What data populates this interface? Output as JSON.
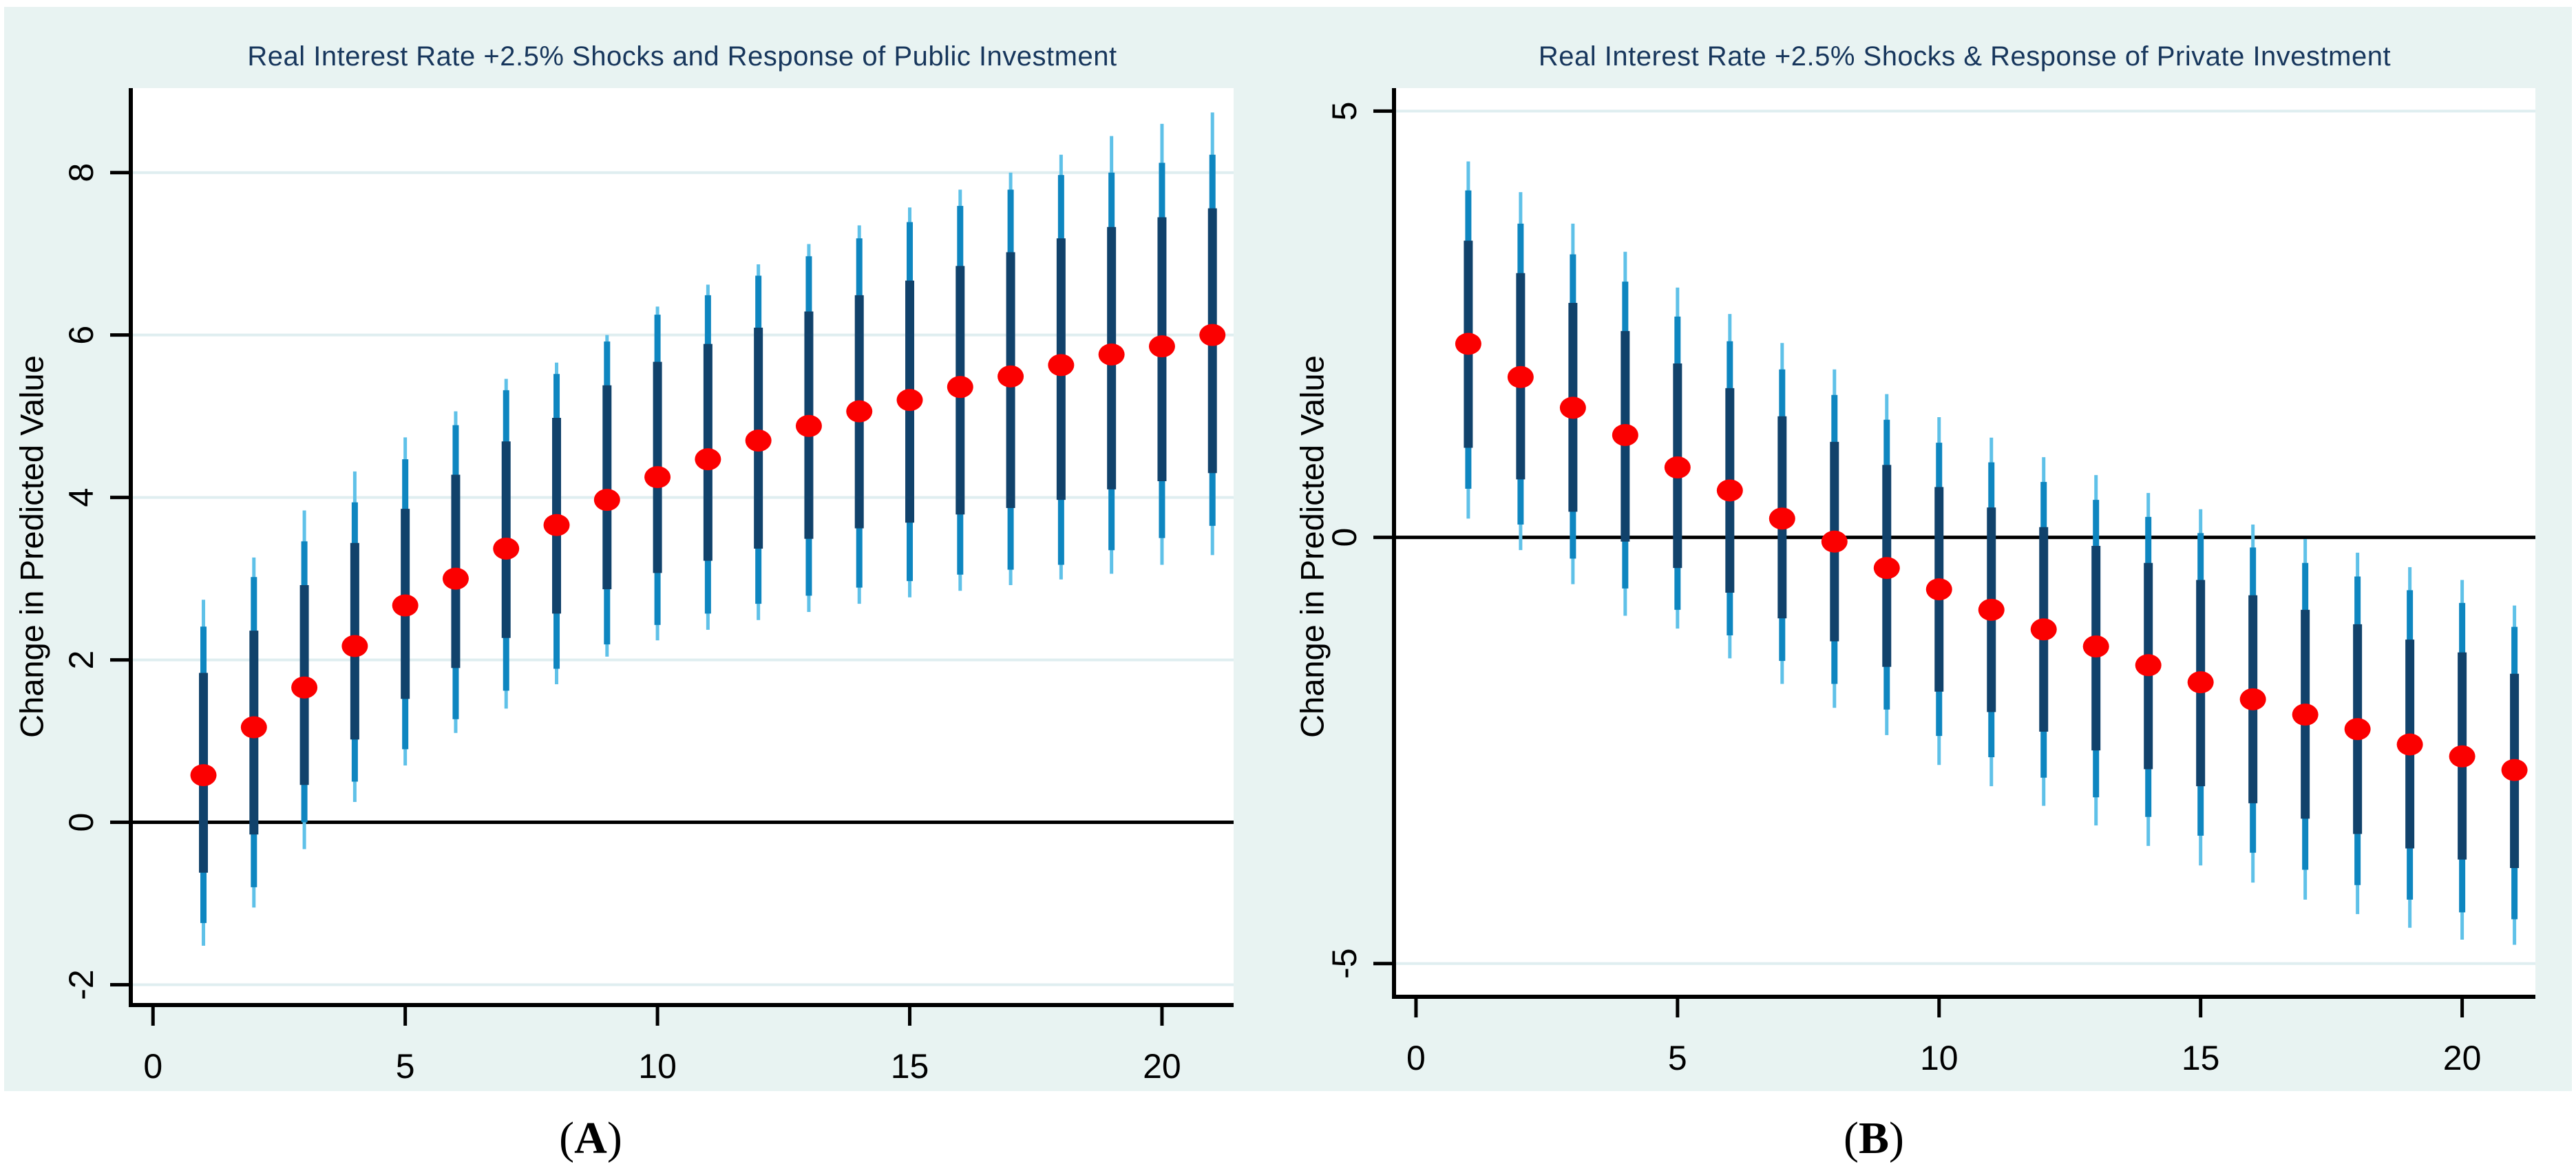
{
  "figure": {
    "y_axis_title": "Change in Predicted Value",
    "caption_open": "(",
    "caption_close": ")"
  },
  "colors": {
    "background_tint": "#e8f3f2",
    "plot_background": "#ffffff",
    "gridline": "#dfeef0",
    "axis": "#000000",
    "zero_line": "#000000",
    "title_text": "#17365c",
    "ci_outer_light_blue": "#5fc1e8",
    "ci_mid_blue": "#0e86c0",
    "ci_inner_navy": "#11426b",
    "point_red": "#fb0000",
    "caption_text": "#000000"
  },
  "chart_data": [
    {
      "type": "scatter",
      "title": "Real Interest Rate +2.5% Shocks and Response of Public Investment",
      "caption": "A",
      "ylabel": "Change in Predicted Value",
      "xlabel": "",
      "grid": true,
      "zero_line": true,
      "legend": "none",
      "x_ticks": [
        0,
        5,
        10,
        15,
        20
      ],
      "y_ticks": [
        8,
        6,
        4,
        2,
        0,
        -2
      ],
      "xlim": [
        -0.44,
        21.42
      ],
      "ylim": [
        -2.25,
        9.04
      ],
      "x": [
        1,
        2,
        3,
        4,
        5,
        6,
        7,
        8,
        9,
        10,
        11,
        12,
        13,
        14,
        15,
        16,
        17,
        18,
        19,
        20,
        21
      ],
      "point_estimate": [
        0.58,
        1.17,
        1.66,
        2.17,
        2.67,
        3.0,
        3.37,
        3.66,
        3.97,
        4.25,
        4.47,
        4.7,
        4.88,
        5.06,
        5.2,
        5.36,
        5.49,
        5.63,
        5.76,
        5.86,
        6.0
      ],
      "ci_inner": [
        [
          -0.62,
          1.84
        ],
        [
          -0.15,
          2.36
        ],
        [
          0.46,
          2.92
        ],
        [
          1.02,
          3.44
        ],
        [
          1.52,
          3.86
        ],
        [
          1.9,
          4.28
        ],
        [
          2.27,
          4.69
        ],
        [
          2.57,
          4.98
        ],
        [
          2.87,
          5.38
        ],
        [
          3.07,
          5.67
        ],
        [
          3.22,
          5.89
        ],
        [
          3.37,
          6.09
        ],
        [
          3.49,
          6.29
        ],
        [
          3.62,
          6.49
        ],
        [
          3.69,
          6.67
        ],
        [
          3.79,
          6.85
        ],
        [
          3.87,
          7.02
        ],
        [
          3.97,
          7.19
        ],
        [
          4.1,
          7.33
        ],
        [
          4.2,
          7.45
        ],
        [
          4.3,
          7.56
        ]
      ],
      "ci_mid": [
        [
          -1.24,
          2.41
        ],
        [
          -0.8,
          3.02
        ],
        [
          0.0,
          3.46
        ],
        [
          0.5,
          3.94
        ],
        [
          0.9,
          4.47
        ],
        [
          1.27,
          4.89
        ],
        [
          1.62,
          5.32
        ],
        [
          1.89,
          5.52
        ],
        [
          2.19,
          5.92
        ],
        [
          2.43,
          6.25
        ],
        [
          2.57,
          6.49
        ],
        [
          2.69,
          6.73
        ],
        [
          2.79,
          6.97
        ],
        [
          2.89,
          7.19
        ],
        [
          2.97,
          7.39
        ],
        [
          3.05,
          7.59
        ],
        [
          3.11,
          7.79
        ],
        [
          3.17,
          7.97
        ],
        [
          3.35,
          8.0
        ],
        [
          3.5,
          8.12
        ],
        [
          3.65,
          8.22
        ]
      ],
      "ci_outer": [
        [
          -1.52,
          2.74
        ],
        [
          -1.05,
          3.26
        ],
        [
          -0.33,
          3.84
        ],
        [
          0.25,
          4.32
        ],
        [
          0.7,
          4.74
        ],
        [
          1.1,
          5.06
        ],
        [
          1.4,
          5.46
        ],
        [
          1.7,
          5.66
        ],
        [
          2.04,
          6.0
        ],
        [
          2.24,
          6.35
        ],
        [
          2.37,
          6.62
        ],
        [
          2.49,
          6.87
        ],
        [
          2.59,
          7.12
        ],
        [
          2.69,
          7.35
        ],
        [
          2.77,
          7.57
        ],
        [
          2.85,
          7.79
        ],
        [
          2.92,
          8.0
        ],
        [
          2.99,
          8.22
        ],
        [
          3.06,
          8.45
        ],
        [
          3.17,
          8.6
        ],
        [
          3.29,
          8.74
        ]
      ]
    },
    {
      "type": "scatter",
      "title": "Real Interest Rate +2.5% Shocks & Response of Private Investment",
      "caption": "B",
      "ylabel": "Change in Predicted Value",
      "xlabel": "",
      "grid": true,
      "zero_line": true,
      "legend": "none",
      "x_ticks": [
        0,
        5,
        10,
        15,
        20
      ],
      "y_ticks": [
        5,
        0,
        -5
      ],
      "xlim": [
        -0.42,
        21.4
      ],
      "ylim": [
        -5.39,
        5.27
      ],
      "x": [
        1,
        2,
        3,
        4,
        5,
        6,
        7,
        8,
        9,
        10,
        11,
        12,
        13,
        14,
        15,
        16,
        17,
        18,
        19,
        20,
        21
      ],
      "point_estimate": [
        2.27,
        1.88,
        1.52,
        1.2,
        0.82,
        0.55,
        0.22,
        -0.05,
        -0.36,
        -0.61,
        -0.85,
        -1.08,
        -1.28,
        -1.5,
        -1.7,
        -1.9,
        -2.08,
        -2.25,
        -2.43,
        -2.57,
        -2.73
      ],
      "ci_inner": [
        [
          1.05,
          3.48
        ],
        [
          0.68,
          3.1
        ],
        [
          0.3,
          2.75
        ],
        [
          -0.05,
          2.42
        ],
        [
          -0.36,
          2.04
        ],
        [
          -0.65,
          1.75
        ],
        [
          -0.95,
          1.42
        ],
        [
          -1.22,
          1.12
        ],
        [
          -1.52,
          0.85
        ],
        [
          -1.81,
          0.59
        ],
        [
          -2.05,
          0.35
        ],
        [
          -2.28,
          0.12
        ],
        [
          -2.5,
          -0.1
        ],
        [
          -2.72,
          -0.3
        ],
        [
          -2.92,
          -0.5
        ],
        [
          -3.12,
          -0.68
        ],
        [
          -3.3,
          -0.85
        ],
        [
          -3.48,
          -1.02
        ],
        [
          -3.65,
          -1.2
        ],
        [
          -3.78,
          -1.35
        ],
        [
          -3.88,
          -1.6
        ]
      ],
      "ci_mid": [
        [
          0.57,
          4.07
        ],
        [
          0.15,
          3.68
        ],
        [
          -0.25,
          3.32
        ],
        [
          -0.6,
          3.0
        ],
        [
          -0.85,
          2.59
        ],
        [
          -1.15,
          2.3
        ],
        [
          -1.45,
          1.97
        ],
        [
          -1.72,
          1.67
        ],
        [
          -2.02,
          1.38
        ],
        [
          -2.33,
          1.11
        ],
        [
          -2.58,
          0.88
        ],
        [
          -2.82,
          0.65
        ],
        [
          -3.05,
          0.44
        ],
        [
          -3.28,
          0.24
        ],
        [
          -3.5,
          0.05
        ],
        [
          -3.7,
          -0.12
        ],
        [
          -3.9,
          -0.3
        ],
        [
          -4.08,
          -0.46
        ],
        [
          -4.25,
          -0.62
        ],
        [
          -4.4,
          -0.77
        ],
        [
          -4.48,
          -1.05
        ]
      ],
      "ci_outer": [
        [
          0.22,
          4.41
        ],
        [
          -0.15,
          4.05
        ],
        [
          -0.55,
          3.68
        ],
        [
          -0.92,
          3.35
        ],
        [
          -1.07,
          2.93
        ],
        [
          -1.42,
          2.62
        ],
        [
          -1.72,
          2.28
        ],
        [
          -2.0,
          1.97
        ],
        [
          -2.32,
          1.68
        ],
        [
          -2.67,
          1.41
        ],
        [
          -2.92,
          1.17
        ],
        [
          -3.15,
          0.94
        ],
        [
          -3.38,
          0.73
        ],
        [
          -3.62,
          0.52
        ],
        [
          -3.85,
          0.33
        ],
        [
          -4.05,
          0.15
        ],
        [
          -4.25,
          -0.02
        ],
        [
          -4.42,
          -0.18
        ],
        [
          -4.58,
          -0.35
        ],
        [
          -4.72,
          -0.5
        ],
        [
          -4.78,
          -0.8
        ]
      ]
    }
  ]
}
